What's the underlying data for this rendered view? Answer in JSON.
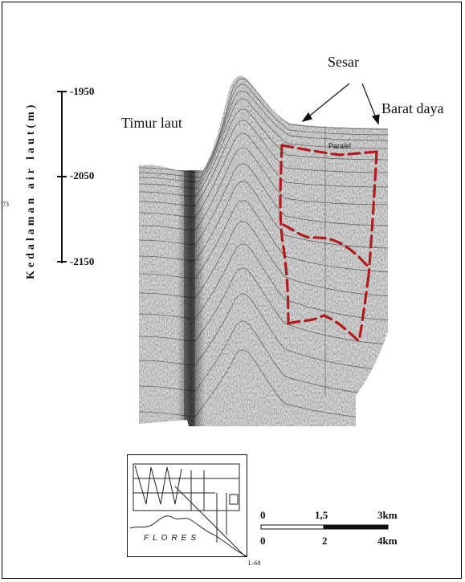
{
  "figure": {
    "labels": {
      "timur_laut": "Timur laut",
      "sesar": "Sesar",
      "barat_daya": "Barat daya",
      "paralel": "Paralel"
    },
    "depth_axis": {
      "title": "Kedalaman air laut(m)",
      "ticks": [
        "-1950",
        "-2050",
        "-2150"
      ]
    },
    "side_mark": "73",
    "inset_map": {
      "region_label": "FLORES",
      "line_label": "L-68"
    },
    "scale_bar": {
      "top_ticks": [
        "0",
        "1,5",
        "3km"
      ],
      "bottom_ticks": [
        "0",
        "2",
        "4km"
      ]
    },
    "colors": {
      "fault": "#b01c1c",
      "seismic": "#3a3a3a"
    }
  }
}
